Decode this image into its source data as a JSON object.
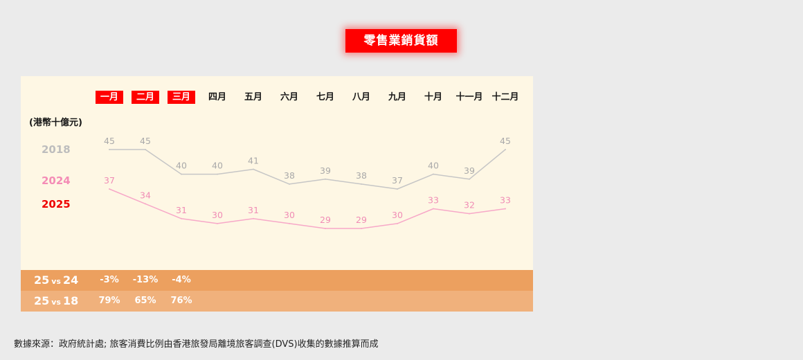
{
  "chart_data": {
    "type": "line",
    "title": "零售業銷貨額",
    "ylabel": "(港幣十億元)",
    "categories": [
      "一月",
      "二月",
      "三月",
      "四月",
      "五月",
      "六月",
      "七月",
      "八月",
      "九月",
      "十月",
      "十一月",
      "十二月"
    ],
    "category_highlight": [
      true,
      true,
      true,
      false,
      false,
      false,
      false,
      false,
      false,
      false,
      false,
      false
    ],
    "series": [
      {
        "name": "2018",
        "values": [
          45,
          45,
          40,
          40,
          41,
          38,
          39,
          38,
          37,
          40,
          39,
          45
        ],
        "line_color": "#c6c6c6",
        "label_color": "#a9a9a9"
      },
      {
        "name": "2024",
        "values": [
          37,
          34,
          31,
          30,
          31,
          30,
          29,
          29,
          30,
          33,
          32,
          33
        ],
        "line_color": "#f7a8c8",
        "label_color": "#f08cb5"
      }
    ],
    "legend": [
      {
        "label": "2018",
        "color": "#bdbdbd"
      },
      {
        "label": "2024",
        "color": "#f48cb6"
      },
      {
        "label": "2025",
        "color": "#ee0000"
      }
    ],
    "legend_placement": "left",
    "grid": false,
    "data_labels": true,
    "highlight_color": "#ff0000"
  },
  "comparison_table": {
    "rows": [
      {
        "label_left": "25",
        "label_vs": "vs",
        "label_right": "24",
        "values": [
          "-3%",
          "-13%",
          "-4%"
        ],
        "background": "#eca05f"
      },
      {
        "label_left": "25",
        "label_vs": "vs",
        "label_right": "18",
        "values": [
          "79%",
          "65%",
          "76%"
        ],
        "background": "#f0b17c"
      }
    ]
  },
  "footer": {
    "source": "數據來源：政府統計處; 旅客消費比例由香港旅發局離境旅客調查(DVS)收集的數據推算而成"
  },
  "colors": {
    "page_background": "#ebebeb",
    "panel_background": "#fef7e4",
    "title_background": "#ff0000"
  }
}
